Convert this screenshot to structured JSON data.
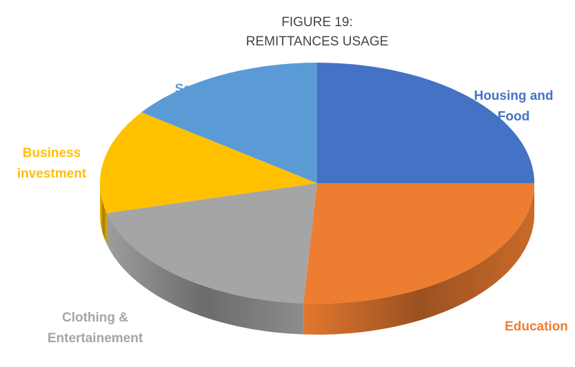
{
  "chart_data": {
    "type": "pie",
    "title": [
      "FIGURE 19:",
      "REMITTANCES USAGE"
    ],
    "categories": [
      "Housing and Food",
      "Education",
      "Clothing & Entertainement",
      "Business investment",
      "Savings"
    ],
    "values": [
      25,
      26,
      20,
      14,
      15
    ],
    "colors": [
      "#4472c4",
      "#ed7d31",
      "#a5a5a5",
      "#ffc000",
      "#5b9bd5"
    ]
  }
}
